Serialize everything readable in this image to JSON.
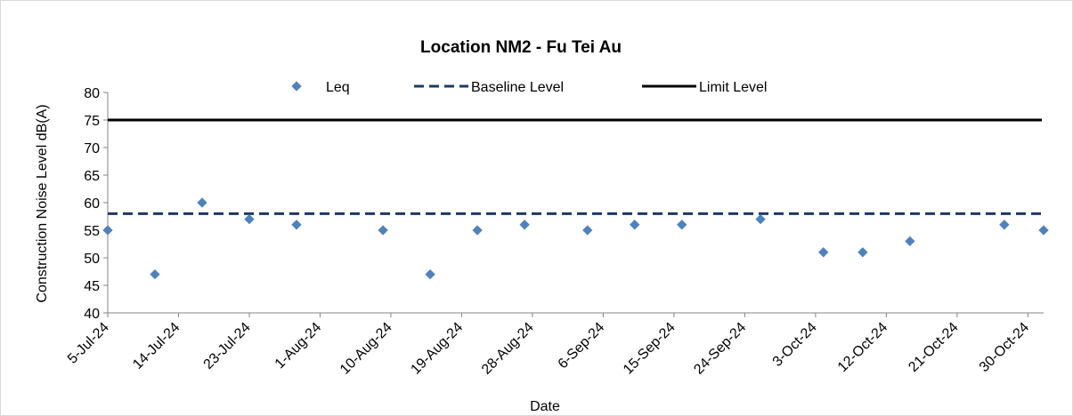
{
  "chart_data": {
    "type": "scatter",
    "title": "Location NM2 - Fu Tei Au",
    "xlabel": "Date",
    "ylabel": "Construction Noise Level  dB(A)",
    "ylim": [
      40,
      80
    ],
    "yticks": [
      "40",
      "45",
      "50",
      "55",
      "60",
      "65",
      "70",
      "75",
      "80"
    ],
    "xlim": [
      "2024-07-05",
      "2024-11-01"
    ],
    "xtick_labels": [
      "5-Jul-24",
      "14-Jul-24",
      "23-Jul-24",
      "1-Aug-24",
      "10-Aug-24",
      "19-Aug-24",
      "28-Aug-24",
      "6-Sep-24",
      "15-Sep-24",
      "24-Sep-24",
      "3-Oct-24",
      "12-Oct-24",
      "21-Oct-24",
      "30-Oct-24"
    ],
    "legend_position": "top",
    "grid": false,
    "series": [
      {
        "name": "Leq",
        "kind": "points",
        "color": "#4f81bd",
        "points": [
          {
            "x": "2024-07-05",
            "y": 55
          },
          {
            "x": "2024-07-11",
            "y": 47
          },
          {
            "x": "2024-07-17",
            "y": 60
          },
          {
            "x": "2024-07-23",
            "y": 57
          },
          {
            "x": "2024-07-29",
            "y": 56
          },
          {
            "x": "2024-08-09",
            "y": 55
          },
          {
            "x": "2024-08-15",
            "y": 47
          },
          {
            "x": "2024-08-21",
            "y": 55
          },
          {
            "x": "2024-08-27",
            "y": 56
          },
          {
            "x": "2024-09-04",
            "y": 55
          },
          {
            "x": "2024-09-10",
            "y": 56
          },
          {
            "x": "2024-09-16",
            "y": 56
          },
          {
            "x": "2024-09-26",
            "y": 57
          },
          {
            "x": "2024-10-04",
            "y": 51
          },
          {
            "x": "2024-10-09",
            "y": 51
          },
          {
            "x": "2024-10-15",
            "y": 53
          },
          {
            "x": "2024-10-27",
            "y": 56
          },
          {
            "x": "2024-11-01",
            "y": 55
          }
        ]
      },
      {
        "name": "Baseline Level",
        "kind": "hline-dashed",
        "color": "#1f3864",
        "value": 58
      },
      {
        "name": "Limit Level",
        "kind": "hline",
        "color": "#000000",
        "value": 75
      }
    ]
  }
}
